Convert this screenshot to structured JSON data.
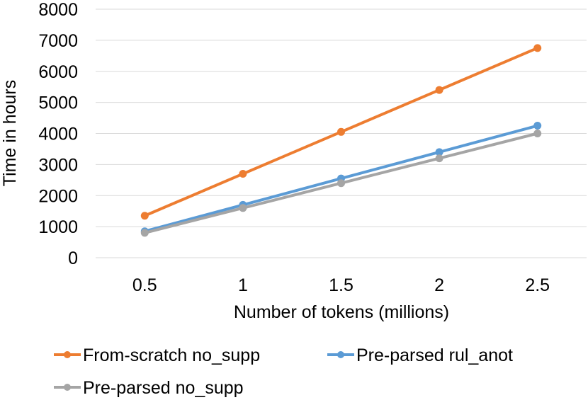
{
  "chart_data": {
    "type": "line",
    "title": "",
    "xlabel": "Number of tokens (millions)",
    "ylabel": "Time in hours",
    "categories": [
      "0.5",
      "1",
      "1.5",
      "2",
      "2.5"
    ],
    "x": [
      0.5,
      1,
      1.5,
      2,
      2.5
    ],
    "ylim": [
      0,
      8000
    ],
    "yticks": [
      0,
      1000,
      2000,
      3000,
      4000,
      5000,
      6000,
      7000,
      8000
    ],
    "yticklabels": [
      "0",
      "1000",
      "2000",
      "3000",
      "4000",
      "5000",
      "6000",
      "7000",
      "8000"
    ],
    "grid": true,
    "legend_position": "bottom",
    "series": [
      {
        "name": "From-scratch no_supp",
        "color": "#ed7d31",
        "values": [
          1350,
          2700,
          4050,
          5400,
          6750
        ]
      },
      {
        "name": "Pre-parsed rul_anot",
        "color": "#5b9bd5",
        "values": [
          850,
          1700,
          2550,
          3400,
          4250
        ]
      },
      {
        "name": "Pre-parsed no_supp",
        "color": "#a5a5a5",
        "values": [
          800,
          1600,
          2400,
          3200,
          4000
        ]
      }
    ]
  }
}
